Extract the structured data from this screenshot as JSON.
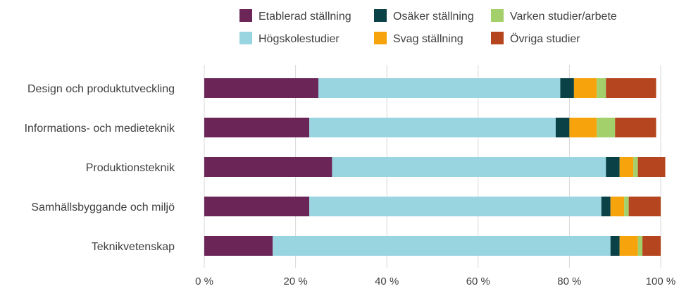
{
  "chart_data": {
    "type": "bar",
    "orientation": "horizontal",
    "stacked": true,
    "title": "",
    "xlabel": "",
    "ylabel": "",
    "xlim": [
      0,
      100
    ],
    "x_ticks": [
      "0 %",
      "20 %",
      "40 %",
      "60 %",
      "80 %",
      "100 %"
    ],
    "grid": "vertical",
    "legend_position": "top",
    "categories": [
      "Design och produktutveckling",
      "Informations- och medieteknik",
      "Produktionsteknik",
      "Samhällsbyggande och miljö",
      "Teknikvetenskap"
    ],
    "series": [
      {
        "name": "Etablerad ställning",
        "color": "#6b2557",
        "values": [
          25,
          23,
          28,
          23,
          15
        ]
      },
      {
        "name": "Högskolestudier",
        "color": "#99d5e0",
        "values": [
          53,
          54,
          60,
          64,
          74
        ]
      },
      {
        "name": "Osäker ställning",
        "color": "#0a4147",
        "values": [
          3,
          3,
          3,
          2,
          2
        ]
      },
      {
        "name": "Svag ställning",
        "color": "#f7a30c",
        "values": [
          5,
          6,
          3,
          3,
          4
        ]
      },
      {
        "name": "Varken studier/arbete",
        "color": "#a3d06a",
        "values": [
          2,
          4,
          1,
          1,
          1
        ]
      },
      {
        "name": "Övriga studier",
        "color": "#b5451e",
        "values": [
          11,
          9,
          6,
          7,
          4
        ]
      }
    ],
    "legend_order": [
      0,
      2,
      4,
      1,
      3,
      5
    ]
  }
}
